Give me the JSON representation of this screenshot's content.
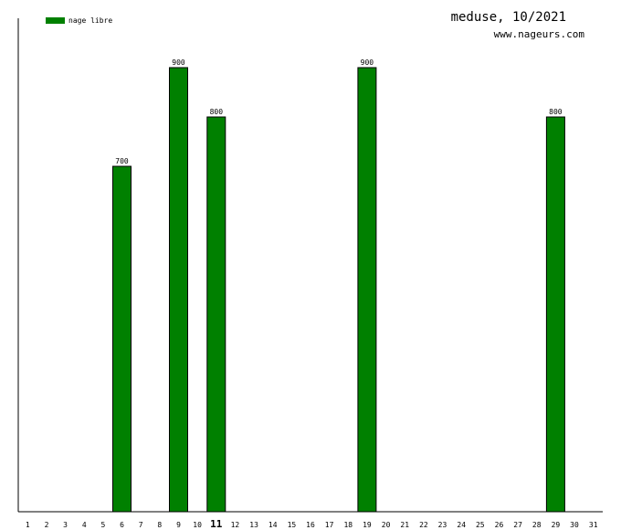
{
  "chart_data": {
    "type": "bar",
    "title": "meduse, 10/2021",
    "subtitle": "www.nageurs.com",
    "legend": {
      "placement": "top-left",
      "entries": [
        {
          "name": "nage libre",
          "color": "#008000"
        }
      ]
    },
    "categories": [
      "1",
      "2",
      "3",
      "4",
      "5",
      "6",
      "7",
      "8",
      "9",
      "10",
      "11",
      "12",
      "13",
      "14",
      "15",
      "16",
      "17",
      "18",
      "19",
      "20",
      "21",
      "22",
      "23",
      "24",
      "25",
      "26",
      "27",
      "28",
      "29",
      "30",
      "31"
    ],
    "highlight_category": "11",
    "series": [
      {
        "name": "nage libre",
        "color": "#008000",
        "values": [
          0,
          0,
          0,
          0,
          0,
          700,
          0,
          0,
          900,
          0,
          800,
          0,
          0,
          0,
          0,
          0,
          0,
          0,
          900,
          0,
          0,
          0,
          0,
          0,
          0,
          0,
          0,
          0,
          800,
          0,
          0
        ]
      }
    ],
    "ylim": [
      0,
      1000
    ],
    "grid": false,
    "xlabel": "",
    "ylabel": ""
  }
}
